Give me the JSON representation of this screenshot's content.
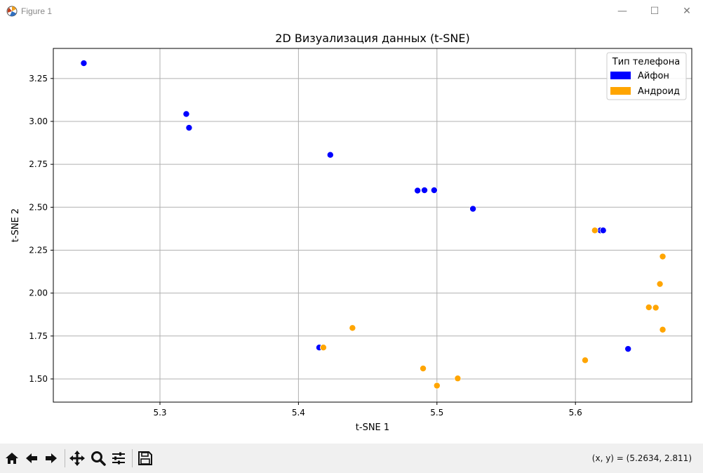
{
  "window": {
    "title": "Figure 1",
    "controls": [
      "—",
      "☐",
      "✕"
    ]
  },
  "colors": {
    "iphone": "#0000ff",
    "android": "#ffa500",
    "grid": "#b0b0b0"
  },
  "chart_data": {
    "type": "scatter",
    "title": "2D Визуализация данных (t-SNE)",
    "xlabel": "t-SNE 1",
    "ylabel": "t-SNE 2",
    "xlim": [
      5.223,
      5.684
    ],
    "ylim": [
      1.365,
      3.425
    ],
    "xticks": [
      5.3,
      5.4,
      5.5,
      5.6
    ],
    "xtick_labels": [
      "5.3",
      "5.4",
      "5.5",
      "5.6"
    ],
    "yticks": [
      1.5,
      1.75,
      2.0,
      2.25,
      2.5,
      2.75,
      3.0,
      3.25
    ],
    "ytick_labels": [
      "1.50",
      "1.75",
      "2.00",
      "2.25",
      "2.50",
      "2.75",
      "3.00",
      "3.25"
    ],
    "grid": true,
    "legend": {
      "title": "Тип телефона",
      "position": "top-right",
      "entries": [
        {
          "label": "Айфон",
          "color": "#0000ff"
        },
        {
          "label": "Андроид",
          "color": "#ffa500"
        }
      ]
    },
    "series": [
      {
        "name": "Айфон",
        "color": "#0000ff",
        "points": [
          [
            5.245,
            3.339
          ],
          [
            5.319,
            3.043
          ],
          [
            5.321,
            2.963
          ],
          [
            5.423,
            2.805
          ],
          [
            5.486,
            2.597
          ],
          [
            5.491,
            2.599
          ],
          [
            5.498,
            2.599
          ],
          [
            5.526,
            2.491
          ],
          [
            5.618,
            2.365
          ],
          [
            5.62,
            2.365
          ],
          [
            5.415,
            1.683
          ],
          [
            5.638,
            1.675
          ]
        ]
      },
      {
        "name": "Андроид",
        "color": "#ffa500",
        "points": [
          [
            5.614,
            2.365
          ],
          [
            5.663,
            2.213
          ],
          [
            5.661,
            2.053
          ],
          [
            5.653,
            1.917
          ],
          [
            5.658,
            1.915
          ],
          [
            5.663,
            1.787
          ],
          [
            5.439,
            1.797
          ],
          [
            5.418,
            1.683
          ],
          [
            5.49,
            1.561
          ],
          [
            5.5,
            1.461
          ],
          [
            5.515,
            1.503
          ],
          [
            5.607,
            1.609
          ]
        ]
      }
    ]
  },
  "toolbar": {
    "buttons": [
      "home-icon",
      "back-icon",
      "forward-icon",
      "pan-icon",
      "zoom-icon",
      "configure-icon",
      "save-icon"
    ],
    "coords_text": "(x, y) = (5.2634, 2.811)"
  }
}
